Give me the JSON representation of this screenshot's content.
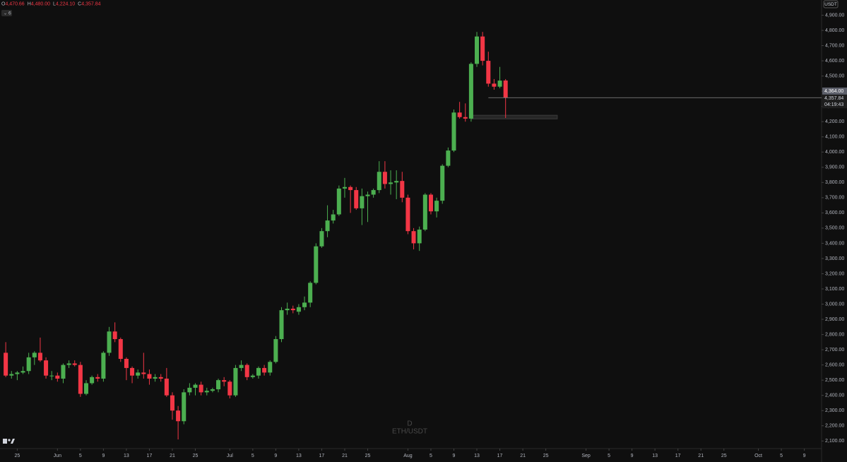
{
  "chart_data": {
    "type": "candlestick",
    "header": [
      {
        "key": "O",
        "value": "4,470.66"
      },
      {
        "key": "H",
        "value": "4,480.00"
      },
      {
        "key": "L",
        "value": "4,224.10"
      },
      {
        "key": "C",
        "value": "4,357.84"
      }
    ],
    "interval_badge": "6",
    "currency": "USDT",
    "watermark": [
      "D",
      "ETH/USDT"
    ],
    "x": [
      "May 23",
      "May 24",
      "May 25",
      "May 26",
      "May 27",
      "May 28",
      "May 29",
      "May 30",
      "May 31",
      "Jun 1",
      "Jun 2",
      "Jun 3",
      "Jun 4",
      "Jun 5",
      "Jun 6",
      "Jun 7",
      "Jun 8",
      "Jun 9",
      "Jun 10",
      "Jun 11",
      "Jun 12",
      "Jun 13",
      "Jun 14",
      "Jun 15",
      "Jun 16",
      "Jun 17",
      "Jun 18",
      "Jun 19",
      "Jun 20",
      "Jun 21",
      "Jun 22",
      "Jun 23",
      "Jun 24",
      "Jun 25",
      "Jun 26",
      "Jun 27",
      "Jun 28",
      "Jun 29",
      "Jun 30",
      "Jul 1",
      "Jul 2",
      "Jul 3",
      "Jul 4",
      "Jul 5",
      "Jul 6",
      "Jul 7",
      "Jul 8",
      "Jul 9",
      "Jul 10",
      "Jul 11",
      "Jul 12",
      "Jul 13",
      "Jul 14",
      "Jul 15",
      "Jul 16",
      "Jul 17",
      "Jul 18",
      "Jul 19",
      "Jul 20",
      "Jul 21",
      "Jul 22",
      "Jul 23",
      "Jul 24",
      "Jul 25",
      "Jul 26",
      "Jul 27",
      "Jul 28",
      "Jul 29",
      "Jul 30",
      "Jul 31",
      "Aug 1",
      "Aug 2",
      "Aug 3",
      "Aug 4",
      "Aug 5",
      "Aug 6",
      "Aug 7",
      "Aug 8",
      "Aug 9",
      "Aug 10",
      "Aug 11",
      "Aug 12",
      "Aug 13",
      "Aug 14",
      "Aug 15",
      "Aug 16",
      "Aug 17",
      "Aug 18"
    ],
    "open": [
      2680,
      2530,
      2540,
      2550,
      2560,
      2650,
      2680,
      2630,
      2530,
      2530,
      2510,
      2600,
      2610,
      2600,
      2410,
      2480,
      2520,
      2510,
      2680,
      2820,
      2770,
      2640,
      2580,
      2530,
      2550,
      2540,
      2510,
      2520,
      2510,
      2400,
      2300,
      2230,
      2420,
      2450,
      2470,
      2420,
      2430,
      2440,
      2500,
      2490,
      2400,
      2580,
      2600,
      2520,
      2530,
      2580,
      2550,
      2620,
      2770,
      2960,
      2970,
      2950,
      2980,
      3010,
      3140,
      3380,
      3480,
      3550,
      3590,
      3760,
      3770,
      3750,
      3630,
      3710,
      3720,
      3750,
      3870,
      3790,
      3800,
      3810,
      3700,
      3480,
      3400,
      3490,
      3720,
      3610,
      3680,
      3910,
      4010,
      4260,
      4230,
      4220,
      4580,
      4760,
      4600,
      4450,
      4430,
      4470.66
    ],
    "high": [
      2750,
      2560,
      2560,
      2590,
      2680,
      2690,
      2780,
      2650,
      2560,
      2550,
      2610,
      2630,
      2630,
      2620,
      2500,
      2530,
      2540,
      2690,
      2850,
      2880,
      2780,
      2650,
      2590,
      2570,
      2680,
      2570,
      2540,
      2540,
      2580,
      2420,
      2330,
      2440,
      2480,
      2480,
      2490,
      2450,
      2450,
      2510,
      2520,
      2500,
      2600,
      2630,
      2610,
      2540,
      2590,
      2600,
      2630,
      2790,
      2980,
      3010,
      2990,
      3000,
      3050,
      3150,
      3400,
      3500,
      3650,
      3620,
      3780,
      3830,
      3780,
      3770,
      3760,
      3740,
      3760,
      3940,
      3940,
      3880,
      3880,
      3870,
      3720,
      3500,
      3510,
      3730,
      3730,
      3700,
      3920,
      4030,
      4280,
      4330,
      4320,
      4590,
      4790,
      4790,
      4660,
      4480,
      4560,
      4480
    ],
    "low": [
      2520,
      2510,
      2500,
      2540,
      2540,
      2600,
      2620,
      2510,
      2500,
      2490,
      2480,
      2580,
      2590,
      2390,
      2400,
      2470,
      2490,
      2490,
      2660,
      2750,
      2620,
      2500,
      2480,
      2510,
      2510,
      2470,
      2490,
      2490,
      2390,
      2240,
      2110,
      2210,
      2400,
      2400,
      2400,
      2400,
      2420,
      2420,
      2460,
      2380,
      2390,
      2560,
      2500,
      2510,
      2510,
      2530,
      2530,
      2610,
      2750,
      2930,
      2940,
      2930,
      2960,
      2980,
      3130,
      3370,
      3440,
      3530,
      3580,
      3700,
      3600,
      3620,
      3520,
      3540,
      3700,
      3730,
      3760,
      3720,
      3690,
      3670,
      3460,
      3360,
      3350,
      3480,
      3590,
      3570,
      3660,
      3900,
      4000,
      4220,
      4200,
      4200,
      4560,
      4570,
      4430,
      4410,
      4420,
      4224.1
    ],
    "close": [
      2530,
      2540,
      2550,
      2560,
      2650,
      2680,
      2630,
      2530,
      2530,
      2510,
      2600,
      2610,
      2600,
      2410,
      2480,
      2520,
      2510,
      2680,
      2820,
      2770,
      2640,
      2580,
      2530,
      2550,
      2540,
      2510,
      2520,
      2510,
      2400,
      2300,
      2230,
      2420,
      2450,
      2470,
      2420,
      2430,
      2440,
      2500,
      2490,
      2400,
      2580,
      2600,
      2520,
      2530,
      2580,
      2550,
      2620,
      2770,
      2960,
      2970,
      2960,
      2980,
      3010,
      3140,
      3380,
      3480,
      3550,
      3590,
      3760,
      3770,
      3750,
      3630,
      3710,
      3720,
      3750,
      3870,
      3790,
      3800,
      3810,
      3700,
      3480,
      3400,
      3490,
      3720,
      3610,
      3680,
      3910,
      4010,
      4260,
      4230,
      4220,
      4580,
      4760,
      4600,
      4450,
      4430,
      4470,
      4357.84
    ],
    "up_color": "#4caf50",
    "down_color": "#f23645",
    "xlim": [
      "May 22",
      "Oct 12"
    ],
    "xticks": [
      {
        "value": "May 25",
        "label": "25"
      },
      {
        "value": "Jun 1",
        "label": "Jun"
      },
      {
        "value": "Jun 5",
        "label": "5"
      },
      {
        "value": "Jun 9",
        "label": "9"
      },
      {
        "value": "Jun 13",
        "label": "13"
      },
      {
        "value": "Jun 17",
        "label": "17"
      },
      {
        "value": "Jun 21",
        "label": "21"
      },
      {
        "value": "Jun 25",
        "label": "25"
      },
      {
        "value": "Jul 1",
        "label": "Jul"
      },
      {
        "value": "Jul 5",
        "label": "5"
      },
      {
        "value": "Jul 9",
        "label": "9"
      },
      {
        "value": "Jul 13",
        "label": "13"
      },
      {
        "value": "Jul 17",
        "label": "17"
      },
      {
        "value": "Jul 21",
        "label": "21"
      },
      {
        "value": "Jul 25",
        "label": "25"
      },
      {
        "value": "Aug 1",
        "label": "Aug"
      },
      {
        "value": "Aug 5",
        "label": "5"
      },
      {
        "value": "Aug 9",
        "label": "9"
      },
      {
        "value": "Aug 13",
        "label": "13"
      },
      {
        "value": "Aug 17",
        "label": "17"
      },
      {
        "value": "Aug 21",
        "label": "21"
      },
      {
        "value": "Aug 25",
        "label": "25"
      },
      {
        "value": "Sep 1",
        "label": "Sep"
      },
      {
        "value": "Sep 5",
        "label": "5"
      },
      {
        "value": "Sep 9",
        "label": "9"
      },
      {
        "value": "Sep 13",
        "label": "13"
      },
      {
        "value": "Sep 17",
        "label": "17"
      },
      {
        "value": "Sep 21",
        "label": "21"
      },
      {
        "value": "Sep 25",
        "label": "25"
      },
      {
        "value": "Oct 1",
        "label": "Oct"
      },
      {
        "value": "Oct 5",
        "label": "5"
      },
      {
        "value": "Oct 9",
        "label": "9"
      }
    ],
    "ylim": [
      2050,
      5000
    ],
    "yticks": [
      {
        "value": 2100,
        "label": "2,100.00"
      },
      {
        "value": 2200,
        "label": "2,200.00"
      },
      {
        "value": 2300,
        "label": "2,300.00"
      },
      {
        "value": 2400,
        "label": "2,400.00"
      },
      {
        "value": 2500,
        "label": "2,500.00"
      },
      {
        "value": 2600,
        "label": "2,600.00"
      },
      {
        "value": 2700,
        "label": "2,700.00"
      },
      {
        "value": 2800,
        "label": "2,800.00"
      },
      {
        "value": 2900,
        "label": "2,900.00"
      },
      {
        "value": 3000,
        "label": "3,000.00"
      },
      {
        "value": 3100,
        "label": "3,100.00"
      },
      {
        "value": 3200,
        "label": "3,200.00"
      },
      {
        "value": 3300,
        "label": "3,300.00"
      },
      {
        "value": 3400,
        "label": "3,400.00"
      },
      {
        "value": 3500,
        "label": "3,500.00"
      },
      {
        "value": 3600,
        "label": "3,600.00"
      },
      {
        "value": 3700,
        "label": "3,700.00"
      },
      {
        "value": 3800,
        "label": "3,800.00"
      },
      {
        "value": 3900,
        "label": "3,900.00"
      },
      {
        "value": 4000,
        "label": "4,000.00"
      },
      {
        "value": 4100,
        "label": "4,100.00"
      },
      {
        "value": 4200,
        "label": "4,200.00"
      },
      {
        "value": 4300,
        "label": "4,300.00"
      },
      {
        "value": 4400,
        "label": "4,400.00"
      },
      {
        "value": 4500,
        "label": "4,500.00"
      },
      {
        "value": 4600,
        "label": "4,600.00"
      },
      {
        "value": 4700,
        "label": "4,700.00"
      },
      {
        "value": 4800,
        "label": "4,800.00"
      },
      {
        "value": 4900,
        "label": "4,900.00"
      }
    ],
    "marker_label": {
      "value": 4364,
      "label": "4,364.00"
    },
    "last_price": {
      "label": "4,357.84",
      "countdown": "04:19:43",
      "from": "Aug 15"
    },
    "zone": {
      "x": [
        "Aug 12",
        "Aug 27"
      ],
      "y": [
        4218,
        4242
      ]
    }
  }
}
